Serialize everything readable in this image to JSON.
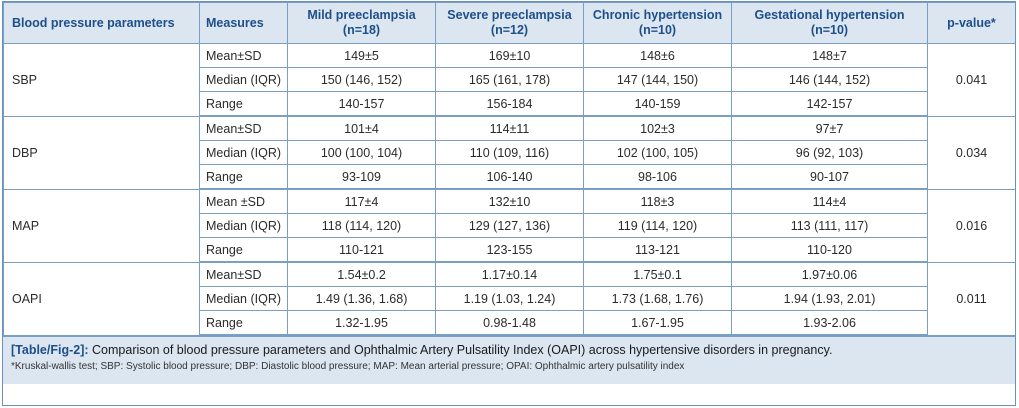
{
  "table": {
    "headers": {
      "param": "Blood pressure parameters",
      "measures": "Measures",
      "mild": [
        "Mild preeclampsia",
        "(n=18)"
      ],
      "severe": [
        "Severe preeclampsia",
        "(n=12)"
      ],
      "chronic": [
        "Chronic hypertension",
        "(n=10)"
      ],
      "gestational": [
        "Gestational hypertension",
        "(n=10)"
      ],
      "pvalue": "p-value*"
    },
    "groups": [
      {
        "name": "SBP",
        "pvalue": "0.041",
        "rows": [
          {
            "measure": "Mean±SD",
            "mild": "149±5",
            "severe": "169±10",
            "chronic": "148±6",
            "gestational": "148±7"
          },
          {
            "measure": "Median (IQR)",
            "mild": "150 (146, 152)",
            "severe": "165 (161, 178)",
            "chronic": "147 (144, 150)",
            "gestational": "146 (144, 152)"
          },
          {
            "measure": "Range",
            "mild": "140-157",
            "severe": "156-184",
            "chronic": "140-159",
            "gestational": "142-157"
          }
        ]
      },
      {
        "name": "DBP",
        "pvalue": "0.034",
        "rows": [
          {
            "measure": "Mean±SD",
            "mild": "101±4",
            "severe": "114±11",
            "chronic": "102±3",
            "gestational": "97±7"
          },
          {
            "measure": "Median (IQR)",
            "mild": "100 (100, 104)",
            "severe": "110 (109, 116)",
            "chronic": "102 (100, 105)",
            "gestational": "96 (92, 103)"
          },
          {
            "measure": "Range",
            "mild": "93-109",
            "severe": "106-140",
            "chronic": "98-106",
            "gestational": "90-107"
          }
        ]
      },
      {
        "name": "MAP",
        "pvalue": "0.016",
        "rows": [
          {
            "measure": "Mean ±SD",
            "mild": "117±4",
            "severe": "132±10",
            "chronic": "118±3",
            "gestational": "114±4"
          },
          {
            "measure": "Median (IQR)",
            "mild": "118 (114, 120)",
            "severe": "129 (127, 136)",
            "chronic": "119 (114, 120)",
            "gestational": "113 (111, 117)"
          },
          {
            "measure": "Range",
            "mild": "110-121",
            "severe": "123-155",
            "chronic": "113-121",
            "gestational": "110-120"
          }
        ]
      },
      {
        "name": "OAPI",
        "pvalue": "0.011",
        "rows": [
          {
            "measure": "Mean±SD",
            "mild": "1.54±0.2",
            "severe": "1.17±0.14",
            "chronic": "1.75±0.1",
            "gestational": "1.97±0.06"
          },
          {
            "measure": "Median (IQR)",
            "mild": "1.49 (1.36, 1.68)",
            "severe": "1.19 (1.03, 1.24)",
            "chronic": "1.73 (1.68, 1.76)",
            "gestational": "1.94 (1.93, 2.01)"
          },
          {
            "measure": "Range",
            "mild": "1.32-1.95",
            "severe": "0.98-1.48",
            "chronic": "1.67-1.95",
            "gestational": "1.93-2.06"
          }
        ]
      }
    ]
  },
  "caption": {
    "label": "[Table/Fig-2]:",
    "text": "Comparison of blood pressure parameters and Ophthalmic Artery Pulsatility Index (OAPI) across hypertensive disorders in pregnancy.",
    "footnote": "*Kruskal-wallis test; SBP: Systolic blood pressure; DBP: Diastolic blood pressure; MAP: Mean arterial pressure; OPAI: Ophthalmic artery pulsatility index"
  }
}
